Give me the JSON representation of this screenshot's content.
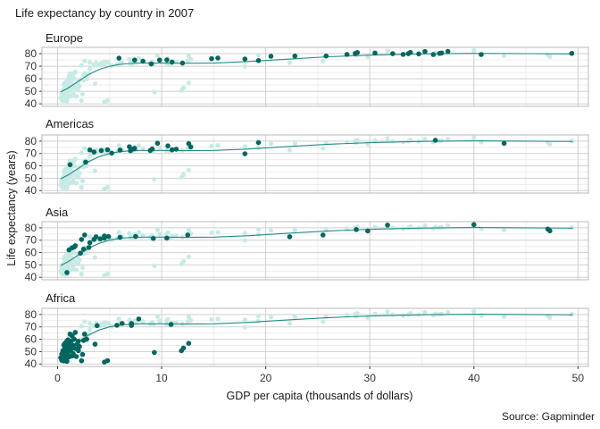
{
  "chart_data": {
    "type": "scatter",
    "title": "Life expectancy by country in 2007",
    "xlabel": "GDP per capita (thousands of dollars)",
    "ylabel": "Life expectancy (years)",
    "caption": "Source: Gapminder",
    "xlim": [
      -1.5,
      51
    ],
    "ylim": [
      38,
      85
    ],
    "x_ticks": [
      0,
      10,
      20,
      30,
      40,
      50
    ],
    "y_ticks": [
      40,
      50,
      60,
      70,
      80
    ],
    "grid": true,
    "colors": {
      "highlight": "#01665e",
      "background_points": "#c7eae5",
      "trend": "#238b85"
    },
    "trend": [
      [
        0.3,
        49.5
      ],
      [
        1,
        52.5
      ],
      [
        2,
        58
      ],
      [
        3,
        63.5
      ],
      [
        4,
        67.5
      ],
      [
        5,
        70
      ],
      [
        6,
        71.5
      ],
      [
        7,
        72.2
      ],
      [
        8,
        72.5
      ],
      [
        10,
        72.5
      ],
      [
        12,
        72.3
      ],
      [
        15,
        72.5
      ],
      [
        18,
        73.5
      ],
      [
        22,
        75.5
      ],
      [
        26,
        77.5
      ],
      [
        30,
        78.8
      ],
      [
        35,
        79.8
      ],
      [
        40,
        80.2
      ],
      [
        45,
        80
      ],
      [
        49.5,
        79.7
      ]
    ],
    "panels": [
      {
        "label": "Europe",
        "points": [
          [
            5.9,
            76.4
          ],
          [
            7.4,
            74.9
          ],
          [
            8.2,
            74.0
          ],
          [
            9.0,
            71.8
          ],
          [
            9.8,
            74.9
          ],
          [
            10.5,
            75.0
          ],
          [
            11.0,
            73.3
          ],
          [
            12.0,
            72.5
          ],
          [
            14.8,
            76.0
          ],
          [
            15.4,
            76.5
          ],
          [
            18.0,
            75.7
          ],
          [
            19.3,
            74.5
          ],
          [
            20.5,
            77.9
          ],
          [
            22.8,
            78.1
          ],
          [
            25.8,
            78.1
          ],
          [
            27.8,
            79.4
          ],
          [
            28.6,
            80.2
          ],
          [
            28.8,
            80.9
          ],
          [
            30.5,
            80.5
          ],
          [
            32.2,
            80.0
          ],
          [
            33.2,
            79.4
          ],
          [
            33.7,
            80.0
          ],
          [
            33.9,
            81.0
          ],
          [
            34.7,
            79.8
          ],
          [
            35.3,
            81.7
          ],
          [
            36.1,
            79.3
          ],
          [
            36.7,
            80.2
          ],
          [
            36.9,
            80.5
          ],
          [
            37.5,
            81.8
          ],
          [
            40.7,
            79.3
          ],
          [
            49.4,
            80.2
          ]
        ]
      },
      {
        "label": "Americas",
        "points": [
          [
            1.2,
            60.9
          ],
          [
            2.7,
            63.0
          ],
          [
            3.1,
            72.9
          ],
          [
            3.5,
            71.2
          ],
          [
            4.2,
            72.4
          ],
          [
            4.8,
            73.0
          ],
          [
            5.2,
            70.3
          ],
          [
            6.0,
            72.8
          ],
          [
            6.9,
            75.5
          ],
          [
            7.0,
            72.2
          ],
          [
            7.3,
            73.7
          ],
          [
            7.4,
            74.2
          ],
          [
            8.9,
            72.4
          ],
          [
            9.1,
            73.7
          ],
          [
            9.6,
            78.3
          ],
          [
            10.6,
            76.2
          ],
          [
            11.0,
            73.0
          ],
          [
            11.4,
            73.5
          ],
          [
            12.8,
            75.3
          ],
          [
            12.6,
            78.0
          ],
          [
            18.0,
            69.8
          ],
          [
            19.3,
            78.8
          ],
          [
            36.3,
            80.7
          ],
          [
            42.9,
            78.2
          ]
        ]
      },
      {
        "label": "Asia",
        "points": [
          [
            0.9,
            43.8
          ],
          [
            1.1,
            62.1
          ],
          [
            1.4,
            63.8
          ],
          [
            1.6,
            64.5
          ],
          [
            1.7,
            65.5
          ],
          [
            2.2,
            59.5
          ],
          [
            2.3,
            70.6
          ],
          [
            2.5,
            62.7
          ],
          [
            2.6,
            74.2
          ],
          [
            3.0,
            64.1
          ],
          [
            3.1,
            68.0
          ],
          [
            3.5,
            70.6
          ],
          [
            3.7,
            72.8
          ],
          [
            4.1,
            71.0
          ],
          [
            4.5,
            73.4
          ],
          [
            4.9,
            72.9
          ],
          [
            4.5,
            71.7
          ],
          [
            6.0,
            72.3
          ],
          [
            7.5,
            73.0
          ],
          [
            9.2,
            71.4
          ],
          [
            10.5,
            71.7
          ],
          [
            12.5,
            74.2
          ],
          [
            22.3,
            72.8
          ],
          [
            25.5,
            74.2
          ],
          [
            28.7,
            78.6
          ],
          [
            29.8,
            77.5
          ],
          [
            31.7,
            82.2
          ],
          [
            40.0,
            82.6
          ],
          [
            47.1,
            79.0
          ],
          [
            47.3,
            77.6
          ]
        ]
      },
      {
        "label": "Africa",
        "points": [
          [
            0.3,
            45.0
          ],
          [
            0.4,
            48.0
          ],
          [
            0.4,
            43.0
          ],
          [
            0.5,
            46.2
          ],
          [
            0.5,
            50.7
          ],
          [
            0.6,
            42.5
          ],
          [
            0.6,
            55.3
          ],
          [
            0.6,
            44.7
          ],
          [
            0.7,
            49.3
          ],
          [
            0.7,
            52.9
          ],
          [
            0.7,
            56.7
          ],
          [
            0.8,
            43.5
          ],
          [
            0.8,
            48.0
          ],
          [
            0.9,
            58.6
          ],
          [
            0.9,
            46.6
          ],
          [
            0.9,
            54.5
          ],
          [
            0.9,
            42.1
          ],
          [
            1.0,
            52.3
          ],
          [
            1.0,
            47.4
          ],
          [
            1.0,
            59.4
          ],
          [
            1.1,
            56.0
          ],
          [
            1.1,
            50.4
          ],
          [
            1.1,
            45.7
          ],
          [
            1.2,
            54.8
          ],
          [
            1.2,
            64.2
          ],
          [
            1.3,
            51.5
          ],
          [
            1.3,
            58.4
          ],
          [
            1.4,
            46.5
          ],
          [
            1.4,
            62.7
          ],
          [
            1.5,
            48.3
          ],
          [
            1.5,
            55.0
          ],
          [
            1.6,
            60.0
          ],
          [
            1.7,
            52.5
          ],
          [
            1.7,
            65.5
          ],
          [
            1.8,
            46.0
          ],
          [
            1.9,
            56.2
          ],
          [
            2.0,
            50.7
          ],
          [
            2.0,
            58.4
          ],
          [
            2.1,
            54.1
          ],
          [
            2.3,
            42.6
          ],
          [
            2.4,
            47.7
          ],
          [
            2.5,
            59.0
          ],
          [
            2.6,
            64.2
          ],
          [
            2.8,
            60.0
          ],
          [
            3.6,
            56.0
          ],
          [
            3.8,
            71.0
          ],
          [
            4.5,
            41.5
          ],
          [
            4.8,
            42.7
          ],
          [
            5.7,
            71.3
          ],
          [
            6.2,
            72.8
          ],
          [
            7.1,
            72.8
          ],
          [
            7.8,
            76.4
          ],
          [
            7.1,
            71.2
          ],
          [
            9.3,
            49.3
          ],
          [
            12.1,
            52.9
          ],
          [
            12.6,
            56.7
          ],
          [
            11.9,
            50.7
          ],
          [
            10.9,
            72.0
          ]
        ]
      }
    ]
  }
}
